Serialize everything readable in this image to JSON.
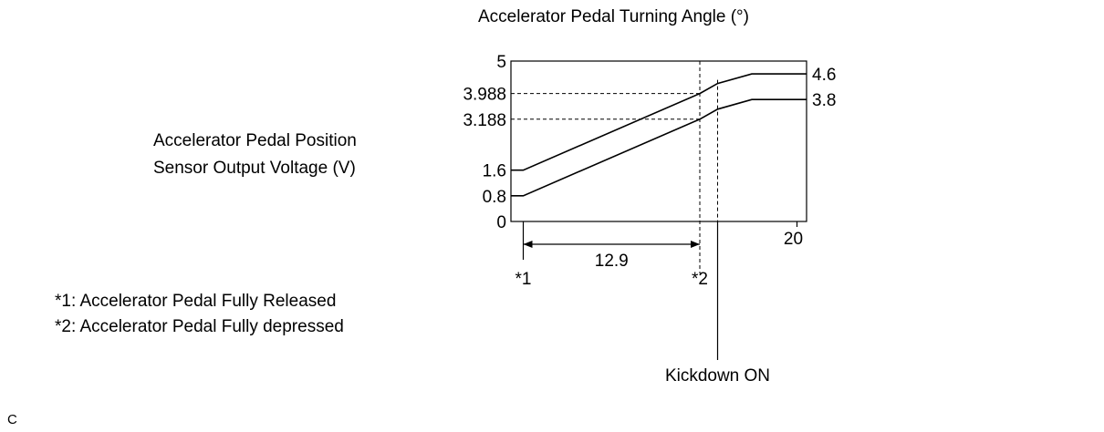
{
  "chart_data": {
    "type": "line",
    "title": "Accelerator Pedal Turning Angle (°)",
    "ylabel_lines": [
      "Accelerator Pedal Position",
      "Sensor Output Voltage (V)"
    ],
    "xlabel": "",
    "x_tick_labels": [
      "20"
    ],
    "y_tick_labels": [
      "5",
      "3.988",
      "3.188",
      "1.6",
      "0.8",
      "0"
    ],
    "right_labels": [
      "4.6",
      "3.8"
    ],
    "xlim": [
      -0.9,
      20.7
    ],
    "ylim": [
      0,
      5
    ],
    "grid": false,
    "series": [
      {
        "x": [
          -0.9,
          0,
          12.9,
          14.2,
          16.7,
          20.7
        ],
        "y": [
          1.6,
          1.6,
          3.988,
          4.3,
          4.6,
          4.6
        ]
      },
      {
        "x": [
          -0.9,
          0,
          12.9,
          14.2,
          16.7,
          20.7
        ],
        "y": [
          0.8,
          0.8,
          3.188,
          3.5,
          3.8,
          3.8
        ]
      }
    ],
    "guides": {
      "depressed_x": 12.9,
      "kickdown_x": 14.2,
      "levels": [
        3.988,
        3.188
      ]
    },
    "dimension": {
      "from_x": 0,
      "to_x": 12.9,
      "label": "12.9"
    },
    "markers": [
      {
        "x": 0,
        "label": "*1"
      },
      {
        "x": 12.9,
        "label": "*2"
      }
    ],
    "annotations": {
      "kickdown": "Kickdown ON"
    }
  },
  "notes": [
    "*1: Accelerator Pedal Fully Released",
    "*2: Accelerator Pedal Fully depressed"
  ],
  "corner_mark": "C"
}
